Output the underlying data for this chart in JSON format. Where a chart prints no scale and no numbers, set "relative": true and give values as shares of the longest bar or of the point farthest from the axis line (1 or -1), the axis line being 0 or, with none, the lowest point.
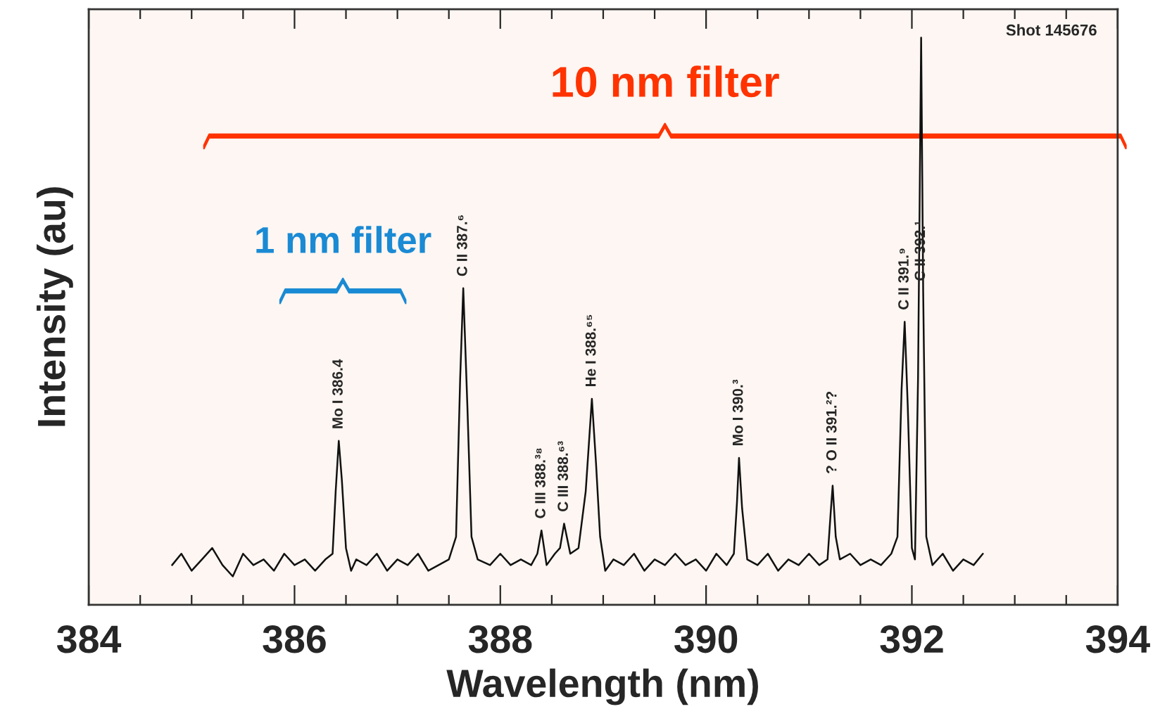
{
  "chart_data": {
    "type": "line",
    "relative": true,
    "xlabel": "Wavelength (nm)",
    "ylabel": "Intensity (au)",
    "xlim": [
      384,
      394
    ],
    "xticks": [
      384,
      {
        "value": 384.5,
        "label": null
      },
      {
        "value": 385,
        "label": null
      },
      {
        "value": 385.5,
        "label": null
      },
      386,
      {
        "value": 386.5,
        "label": null
      },
      {
        "value": 387,
        "label": null
      },
      {
        "value": 387.5,
        "label": null
      },
      388,
      {
        "value": 388.5,
        "label": null
      },
      {
        "value": 389,
        "label": null
      },
      {
        "value": 389.5,
        "label": null
      },
      390,
      {
        "value": 390.5,
        "label": null
      },
      {
        "value": 391,
        "label": null
      },
      {
        "value": 391.5,
        "label": null
      },
      392,
      {
        "value": 392.5,
        "label": null
      },
      {
        "value": 393,
        "label": null
      },
      {
        "value": 393.5,
        "label": null
      },
      394
    ],
    "tick_labels": "x",
    "grid": false,
    "legend": false,
    "series": [
      {
        "color": "#111111",
        "x": [
          384.81,
          384.9,
          385.0,
          385.1,
          385.2,
          385.3,
          385.4,
          385.5,
          385.6,
          385.7,
          385.8,
          385.9,
          386.0,
          386.1,
          386.2,
          386.3,
          386.37,
          386.4,
          386.43,
          386.46,
          386.5,
          386.55,
          386.6,
          386.7,
          386.8,
          386.9,
          387.0,
          387.1,
          387.2,
          387.3,
          387.4,
          387.5,
          387.57,
          387.61,
          387.64,
          387.68,
          387.72,
          387.78,
          387.9,
          388.0,
          388.1,
          388.2,
          388.3,
          388.36,
          388.4,
          388.45,
          388.53,
          388.58,
          388.62,
          388.68,
          388.76,
          388.83,
          388.89,
          388.93,
          388.97,
          389.02,
          389.1,
          389.2,
          389.3,
          389.4,
          389.5,
          389.6,
          389.7,
          389.8,
          389.9,
          390.0,
          390.1,
          390.2,
          390.27,
          390.3,
          390.32,
          390.35,
          390.4,
          390.5,
          390.6,
          390.7,
          390.8,
          390.9,
          391.0,
          391.1,
          391.18,
          391.21,
          391.23,
          391.26,
          391.3,
          391.4,
          391.5,
          391.6,
          391.7,
          391.8,
          391.86,
          391.9,
          391.93,
          391.96,
          392.0,
          392.03,
          392.06,
          392.09,
          392.11,
          392.14,
          392.2,
          392.3,
          392.4,
          392.5,
          392.6,
          392.69
        ],
        "values": [
          0.07,
          0.09,
          0.06,
          0.08,
          0.1,
          0.07,
          0.05,
          0.09,
          0.07,
          0.08,
          0.06,
          0.09,
          0.07,
          0.08,
          0.06,
          0.08,
          0.09,
          0.2,
          0.289,
          0.22,
          0.1,
          0.06,
          0.08,
          0.07,
          0.09,
          0.06,
          0.08,
          0.07,
          0.09,
          0.06,
          0.07,
          0.08,
          0.12,
          0.4,
          0.558,
          0.35,
          0.12,
          0.08,
          0.07,
          0.09,
          0.07,
          0.08,
          0.07,
          0.09,
          0.131,
          0.07,
          0.09,
          0.1,
          0.143,
          0.09,
          0.1,
          0.2,
          0.363,
          0.25,
          0.12,
          0.06,
          0.08,
          0.07,
          0.09,
          0.06,
          0.08,
          0.07,
          0.09,
          0.07,
          0.08,
          0.06,
          0.09,
          0.07,
          0.09,
          0.18,
          0.259,
          0.17,
          0.08,
          0.07,
          0.09,
          0.06,
          0.08,
          0.07,
          0.09,
          0.07,
          0.08,
          0.16,
          0.21,
          0.12,
          0.08,
          0.09,
          0.07,
          0.08,
          0.07,
          0.09,
          0.12,
          0.38,
          0.499,
          0.35,
          0.1,
          0.08,
          0.4,
          1.0,
          0.55,
          0.12,
          0.07,
          0.09,
          0.06,
          0.08,
          0.07,
          0.09
        ]
      }
    ],
    "annotations": [
      {
        "text": "Mo I 386.4",
        "x": 386.43,
        "y": 0.289
      },
      {
        "text": "C II 387.⁶",
        "x": 387.64,
        "y": 0.558
      },
      {
        "text": "C III 388.³⁸",
        "x": 388.4,
        "y": 0.131
      },
      {
        "text": "C III 388.⁶³",
        "x": 388.62,
        "y": 0.143
      },
      {
        "text": "He I 388.⁶⁵",
        "x": 388.89,
        "y": 0.363
      },
      {
        "text": "Mo I 390.³",
        "x": 390.32,
        "y": 0.259
      },
      {
        "text": "? O II 391.²?",
        "x": 391.23,
        "y": 0.21
      },
      {
        "text": "C II 391.⁹",
        "x": 391.93,
        "y": 0.499
      },
      {
        "text": "C II 392.¹",
        "x": 392.09,
        "y": 0.55
      },
      "Shot 145676",
      "10 nm filter",
      "1 nm filter"
    ]
  }
}
